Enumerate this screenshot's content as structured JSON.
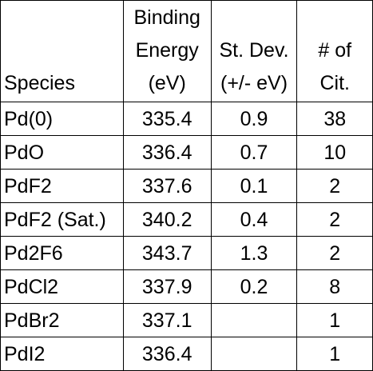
{
  "table": {
    "headers": {
      "species": [
        "Species"
      ],
      "binding_energy": [
        "Binding",
        "Energy",
        "(eV)"
      ],
      "std_dev": [
        "St. Dev.",
        "(+/- eV)"
      ],
      "citations": [
        "# of",
        "Cit."
      ]
    },
    "rows": [
      {
        "species": "Pd(0)",
        "binding_energy": "335.4",
        "std_dev": "0.9",
        "citations": "38"
      },
      {
        "species": "PdO",
        "binding_energy": "336.4",
        "std_dev": "0.7",
        "citations": "10"
      },
      {
        "species": "PdF2",
        "binding_energy": "337.6",
        "std_dev": "0.1",
        "citations": "2"
      },
      {
        "species": "PdF2 (Sat.)",
        "binding_energy": "340.2",
        "std_dev": "0.4",
        "citations": "2"
      },
      {
        "species": "Pd2F6",
        "binding_energy": "343.7",
        "std_dev": "1.3",
        "citations": "2"
      },
      {
        "species": "PdCl2",
        "binding_energy": "337.9",
        "std_dev": "0.2",
        "citations": "8"
      },
      {
        "species": "PdBr2",
        "binding_energy": "337.1",
        "std_dev": "",
        "citations": "1"
      },
      {
        "species": "PdI2",
        "binding_energy": "336.4",
        "std_dev": "",
        "citations": "1"
      }
    ]
  }
}
